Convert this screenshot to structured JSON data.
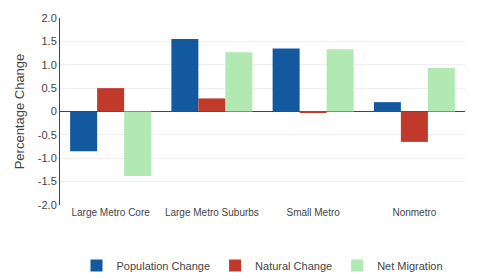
{
  "chart_data": {
    "type": "bar",
    "categories": [
      "Large Metro Core",
      "Large Metro Suburbs",
      "Small Metro",
      "Nonmetro"
    ],
    "series": [
      {
        "name": "Population Change",
        "color": "#1259a0",
        "values": [
          -0.85,
          1.55,
          1.35,
          0.2
        ]
      },
      {
        "name": "Natural Change",
        "color": "#c0392b",
        "values": [
          0.5,
          0.28,
          -0.02,
          -0.65
        ]
      },
      {
        "name": "Net Migration",
        "color": "#b2e8b2",
        "values": [
          -1.38,
          1.27,
          1.33,
          0.93
        ]
      }
    ],
    "ylabel": "Percentage Change",
    "ylim": [
      -2.0,
      2.0
    ],
    "yticks": [
      {
        "value": -2.0,
        "label": "-2.0"
      },
      -1.5,
      {
        "value": -1.0,
        "label": "-1.0"
      },
      -0.5,
      0,
      0.5,
      {
        "value": 1.0,
        "label": "1.0"
      },
      1.5,
      {
        "value": 2.0,
        "label": "2.0"
      }
    ],
    "grid": true,
    "legend": "bottom"
  }
}
